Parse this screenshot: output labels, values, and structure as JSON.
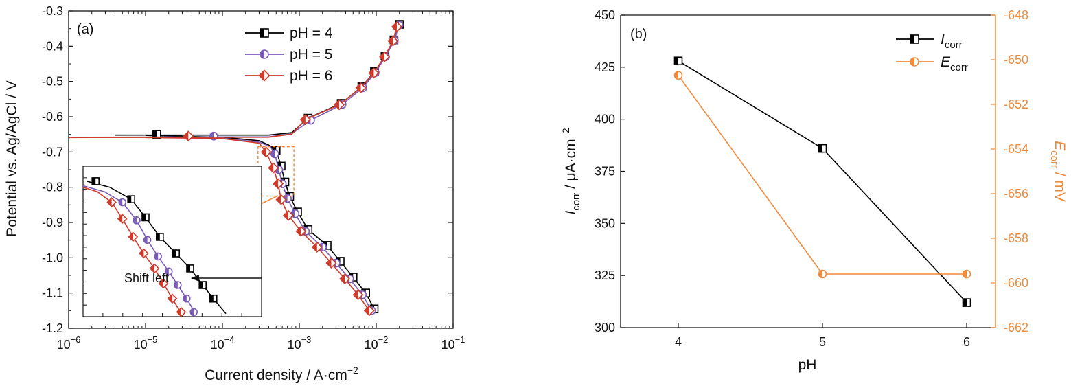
{
  "chart_data": [
    {
      "type": "line",
      "panel_label": "(a)",
      "xlabel": "Current density / A·cm",
      "xlabel_sup": "−2",
      "ylabel": "Potential vs. Ag/AgCl / V",
      "xscale": "log",
      "xlim": [
        1e-06,
        0.1
      ],
      "ylim": [
        -1.2,
        -0.3
      ],
      "xticks": [
        {
          "value": 1e-06,
          "base": "10",
          "exp": "-6"
        },
        {
          "value": 1e-05,
          "base": "10",
          "exp": "-5"
        },
        {
          "value": 0.0001,
          "base": "10",
          "exp": "-4"
        },
        {
          "value": 0.001,
          "base": "10",
          "exp": "-3"
        },
        {
          "value": 0.01,
          "base": "10",
          "exp": "-2"
        },
        {
          "value": 0.1,
          "base": "10",
          "exp": "-1"
        }
      ],
      "yticks": [
        {
          "value": -0.3,
          "label": "-0.3"
        },
        {
          "value": -0.4,
          "label": "-0.4"
        },
        {
          "value": -0.5,
          "label": "-0.5"
        },
        {
          "value": -0.6,
          "label": "-0.6"
        },
        {
          "value": -0.7,
          "label": "-0.7"
        },
        {
          "value": -0.8,
          "label": "-0.8"
        },
        {
          "value": -0.9,
          "label": "-0.9"
        },
        {
          "value": -1.0,
          "label": "-1.0"
        },
        {
          "value": -1.1,
          "label": "-1.1"
        },
        {
          "value": -1.2,
          "label": "-1.2"
        }
      ],
      "legend_placement": "top-center",
      "series": [
        {
          "name": "pH = 4",
          "color": "#000000",
          "marker": "half-square",
          "anodic": [
            [
              0.0004,
              -0.652
            ],
            [
              0.0008,
              -0.645
            ],
            [
              0.0013,
              -0.604
            ],
            [
              0.0035,
              -0.562
            ],
            [
              0.0065,
              -0.515
            ],
            [
              0.0095,
              -0.472
            ],
            [
              0.013,
              -0.428
            ],
            [
              0.017,
              -0.382
            ],
            [
              0.02,
              -0.338
            ]
          ],
          "anodic_markers": [
            [
              0.0013,
              -0.604
            ],
            [
              0.0035,
              -0.562
            ],
            [
              0.0065,
              -0.515
            ],
            [
              0.0095,
              -0.472
            ],
            [
              0.013,
              -0.428
            ],
            [
              0.017,
              -0.382
            ],
            [
              0.02,
              -0.338
            ]
          ],
          "base": [
            [
              4e-06,
              -0.652
            ],
            [
              0.0004,
              -0.652
            ]
          ],
          "base_markers": [
            [
              1.4e-05,
              -0.65
            ]
          ],
          "cathodic": [
            [
              1e-05,
              -0.653
            ],
            [
              0.0001,
              -0.658
            ],
            [
              0.0003,
              -0.668
            ],
            [
              0.0004,
              -0.68
            ],
            [
              0.0005,
              -0.695
            ],
            [
              0.00058,
              -0.74
            ],
            [
              0.00065,
              -0.785
            ],
            [
              0.00075,
              -0.826
            ],
            [
              0.00095,
              -0.87
            ],
            [
              0.0013,
              -0.92
            ],
            [
              0.0023,
              -0.965
            ],
            [
              0.0034,
              -1.01
            ],
            [
              0.005,
              -1.055
            ],
            [
              0.0073,
              -1.1
            ],
            [
              0.0094,
              -1.145
            ]
          ],
          "cathodic_markers": [
            [
              0.0005,
              -0.695
            ],
            [
              0.00058,
              -0.74
            ],
            [
              0.00065,
              -0.785
            ],
            [
              0.00075,
              -0.826
            ],
            [
              0.00095,
              -0.87
            ],
            [
              0.0013,
              -0.92
            ],
            [
              0.0023,
              -0.965
            ],
            [
              0.0034,
              -1.01
            ],
            [
              0.005,
              -1.055
            ],
            [
              0.0073,
              -1.1
            ],
            [
              0.0094,
              -1.145
            ]
          ]
        },
        {
          "name": "pH = 5",
          "color": "#7a5ab8",
          "marker": "half-circle",
          "anodic": [
            [
              0.0004,
              -0.657
            ],
            [
              0.0008,
              -0.648
            ],
            [
              0.0014,
              -0.61
            ],
            [
              0.0036,
              -0.565
            ],
            [
              0.0067,
              -0.518
            ],
            [
              0.0097,
              -0.475
            ],
            [
              0.0132,
              -0.43
            ],
            [
              0.0172,
              -0.384
            ],
            [
              0.0198,
              -0.34
            ]
          ],
          "anodic_markers": [
            [
              0.0014,
              -0.61
            ],
            [
              0.0036,
              -0.565
            ],
            [
              0.0067,
              -0.518
            ],
            [
              0.0097,
              -0.475
            ],
            [
              0.0132,
              -0.43
            ],
            [
              0.0172,
              -0.384
            ],
            [
              0.0198,
              -0.34
            ]
          ],
          "base": [
            [
              1e-06,
              -0.658
            ],
            [
              0.0004,
              -0.657
            ]
          ],
          "base_markers": [
            [
              7.7e-05,
              -0.655
            ]
          ],
          "cathodic": [
            [
              1e-05,
              -0.658
            ],
            [
              0.0001,
              -0.661
            ],
            [
              0.0003,
              -0.672
            ],
            [
              0.00042,
              -0.685
            ],
            [
              0.00048,
              -0.705
            ],
            [
              0.00054,
              -0.75
            ],
            [
              0.0006,
              -0.79
            ],
            [
              0.0007,
              -0.832
            ],
            [
              0.00088,
              -0.875
            ],
            [
              0.0012,
              -0.925
            ],
            [
              0.002,
              -0.97
            ],
            [
              0.003,
              -1.015
            ],
            [
              0.0045,
              -1.06
            ],
            [
              0.0066,
              -1.105
            ],
            [
              0.0087,
              -1.15
            ]
          ],
          "cathodic_markers": [
            [
              0.00048,
              -0.705
            ],
            [
              0.00054,
              -0.75
            ],
            [
              0.0006,
              -0.79
            ],
            [
              0.0007,
              -0.832
            ],
            [
              0.00088,
              -0.875
            ],
            [
              0.0012,
              -0.925
            ],
            [
              0.002,
              -0.97
            ],
            [
              0.003,
              -1.015
            ],
            [
              0.0045,
              -1.06
            ],
            [
              0.0066,
              -1.105
            ],
            [
              0.0087,
              -1.15
            ]
          ]
        },
        {
          "name": "pH = 6",
          "color": "#d03a2a",
          "marker": "half-diamond",
          "anodic": [
            [
              0.0004,
              -0.658
            ],
            [
              0.0008,
              -0.649
            ],
            [
              0.0012,
              -0.608
            ],
            [
              0.0033,
              -0.566
            ],
            [
              0.0063,
              -0.518
            ],
            [
              0.0093,
              -0.476
            ],
            [
              0.0128,
              -0.43
            ],
            [
              0.0165,
              -0.385
            ],
            [
              0.0185,
              -0.345
            ]
          ],
          "anodic_markers": [
            [
              0.0012,
              -0.608
            ],
            [
              0.0033,
              -0.566
            ],
            [
              0.0063,
              -0.518
            ],
            [
              0.0093,
              -0.476
            ],
            [
              0.0128,
              -0.43
            ],
            [
              0.0165,
              -0.385
            ],
            [
              0.0185,
              -0.345
            ]
          ],
          "base": [
            [
              1e-06,
              -0.659
            ],
            [
              0.0004,
              -0.658
            ]
          ],
          "base_markers": [
            [
              3.6e-05,
              -0.655
            ]
          ],
          "cathodic": [
            [
              1e-05,
              -0.659
            ],
            [
              0.0001,
              -0.662
            ],
            [
              0.0003,
              -0.675
            ],
            [
              0.00037,
              -0.7
            ],
            [
              0.00046,
              -0.745
            ],
            [
              0.00053,
              -0.79
            ],
            [
              0.00058,
              -0.835
            ],
            [
              0.00072,
              -0.88
            ],
            [
              0.00105,
              -0.925
            ],
            [
              0.0017,
              -0.97
            ],
            [
              0.0026,
              -1.015
            ],
            [
              0.0039,
              -1.06
            ],
            [
              0.0058,
              -1.105
            ],
            [
              0.0081,
              -1.15
            ]
          ],
          "cathodic_markers": [
            [
              0.00037,
              -0.7
            ],
            [
              0.00046,
              -0.745
            ],
            [
              0.00053,
              -0.79
            ],
            [
              0.00058,
              -0.835
            ],
            [
              0.00072,
              -0.88
            ],
            [
              0.00105,
              -0.925
            ],
            [
              0.0017,
              -0.97
            ],
            [
              0.0026,
              -1.015
            ],
            [
              0.0039,
              -1.06
            ],
            [
              0.0058,
              -1.105
            ],
            [
              0.0081,
              -1.15
            ]
          ]
        }
      ],
      "inset": {
        "annotation": "Shift left",
        "zoom_box": {
          "x": [
            0.00029,
            0.00085
          ],
          "y": [
            -0.685,
            -0.825
          ]
        },
        "series": [
          {
            "name": "pH = 4",
            "points": [
              [
                0.02,
                0.9
              ],
              [
                0.15,
                0.86
              ],
              [
                0.27,
                0.78
              ],
              [
                0.35,
                0.66
              ],
              [
                0.43,
                0.53
              ],
              [
                0.52,
                0.42
              ],
              [
                0.6,
                0.32
              ],
              [
                0.67,
                0.21
              ],
              [
                0.73,
                0.12
              ],
              [
                0.8,
                0.02
              ]
            ],
            "markers": [
              [
                0.07,
                0.9
              ],
              [
                0.27,
                0.78
              ],
              [
                0.35,
                0.66
              ],
              [
                0.43,
                0.53
              ],
              [
                0.52,
                0.42
              ],
              [
                0.6,
                0.32
              ],
              [
                0.67,
                0.21
              ],
              [
                0.73,
                0.12
              ]
            ]
          },
          {
            "name": "pH = 5",
            "points": [
              [
                0.0,
                0.87
              ],
              [
                0.12,
                0.83
              ],
              [
                0.22,
                0.76
              ],
              [
                0.3,
                0.64
              ],
              [
                0.36,
                0.51
              ],
              [
                0.42,
                0.4
              ],
              [
                0.48,
                0.3
              ],
              [
                0.53,
                0.21
              ],
              [
                0.58,
                0.12
              ],
              [
                0.63,
                0.02
              ]
            ],
            "markers": [
              [
                0.22,
                0.76
              ],
              [
                0.3,
                0.64
              ],
              [
                0.36,
                0.51
              ],
              [
                0.42,
                0.4
              ],
              [
                0.48,
                0.3
              ],
              [
                0.53,
                0.21
              ],
              [
                0.58,
                0.12
              ],
              [
                0.62,
                0.03
              ]
            ]
          },
          {
            "name": "pH = 6",
            "points": [
              [
                0.0,
                0.86
              ],
              [
                0.08,
                0.83
              ],
              [
                0.16,
                0.76
              ],
              [
                0.22,
                0.65
              ],
              [
                0.28,
                0.53
              ],
              [
                0.34,
                0.42
              ],
              [
                0.4,
                0.32
              ],
              [
                0.45,
                0.22
              ],
              [
                0.5,
                0.12
              ],
              [
                0.55,
                0.02
              ]
            ],
            "markers": [
              [
                0.16,
                0.76
              ],
              [
                0.22,
                0.65
              ],
              [
                0.28,
                0.53
              ],
              [
                0.34,
                0.42
              ],
              [
                0.4,
                0.32
              ],
              [
                0.45,
                0.22
              ],
              [
                0.5,
                0.12
              ],
              [
                0.55,
                0.03
              ]
            ]
          }
        ]
      }
    },
    {
      "type": "line",
      "panel_label": "(b)",
      "xlabel": "pH",
      "ylabel_left": {
        "main": "I",
        "sub": "corr",
        "rest": " / μA·cm",
        "sup": "−2"
      },
      "ylabel_right": {
        "main": "E",
        "sub": "corr",
        "rest": " / mV"
      },
      "x": [
        4,
        5,
        6
      ],
      "xlim": [
        3.6,
        6.2
      ],
      "xticks": [
        "4",
        "5",
        "6"
      ],
      "ylim_left": [
        300,
        450
      ],
      "yticks_left": [
        "300",
        "325",
        "350",
        "375",
        "400",
        "425",
        "450"
      ],
      "ylim_right": [
        -662,
        -648
      ],
      "yticks_right": [
        "-662",
        "-660",
        "-658",
        "-656",
        "-654",
        "-652",
        "-650",
        "-648"
      ],
      "legend_placement": "top-right",
      "series": [
        {
          "name_main": "I",
          "name_sub": "corr",
          "axis": "left",
          "color": "#000000",
          "marker": "half-square",
          "values": [
            428,
            386,
            312
          ]
        },
        {
          "name_main": "E",
          "name_sub": "corr",
          "axis": "right",
          "color": "#f08a3c",
          "marker": "half-circle",
          "values": [
            -650.7,
            -659.6,
            -659.6
          ]
        }
      ]
    }
  ]
}
